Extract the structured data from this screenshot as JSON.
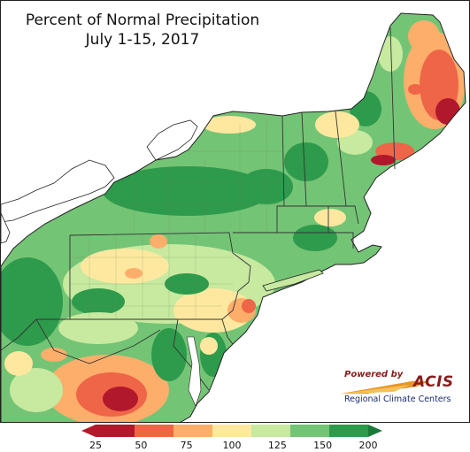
{
  "title_line1": "Percent of Normal Precipitation",
  "title_line2": "July 1-15, 2017",
  "legend": {
    "ticks": [
      "25",
      "50",
      "75",
      "100",
      "125",
      "150",
      "200"
    ],
    "colors": [
      "#b2182b",
      "#ef6548",
      "#fdae6b",
      "#fee8a0",
      "#c7e9a0",
      "#74c476",
      "#2e9a4c"
    ],
    "arrow_low_color": "#b2182b",
    "arrow_high_color": "#1b7a3a"
  },
  "logo": {
    "powered_by": "Powered by",
    "acis": "ACIS",
    "subtitle": "Regional Climate Centers"
  },
  "colors": {
    "lake": "#ffffff",
    "ocean": "#ffffff",
    "borders": "#333333"
  }
}
